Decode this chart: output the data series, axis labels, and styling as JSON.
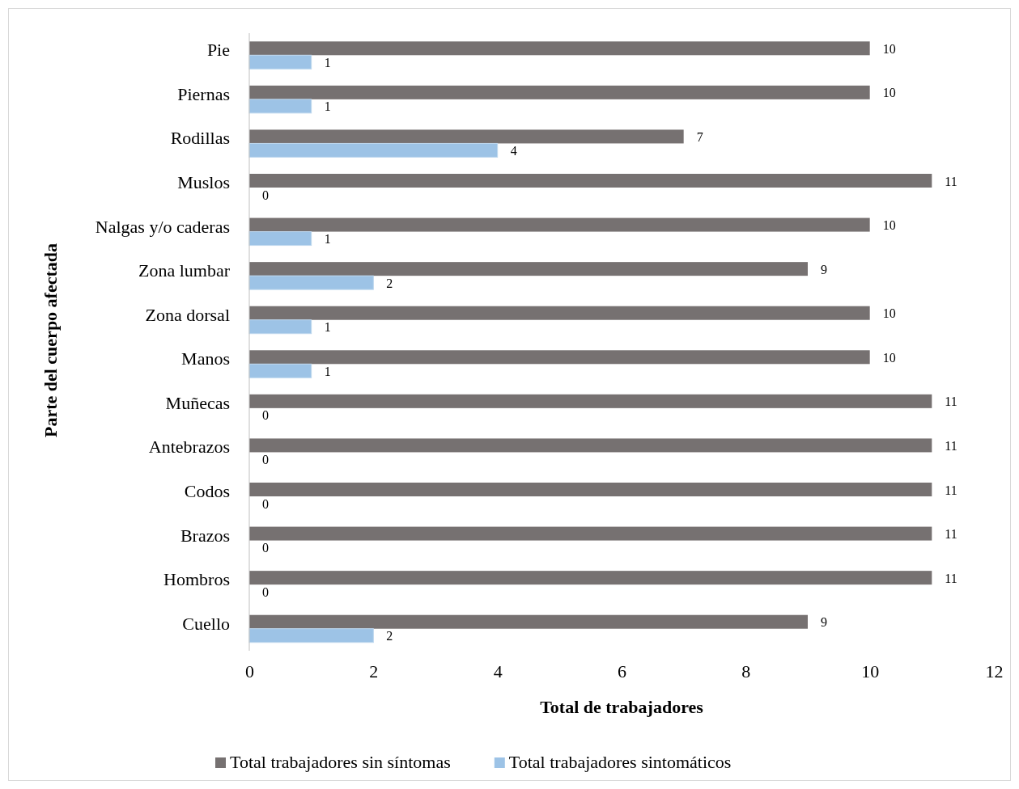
{
  "chart_data": {
    "type": "bar",
    "orientation": "horizontal",
    "xlabel": "Total de trabajadores",
    "ylabel": "Parte del cuerpo afectada",
    "categories": [
      "Pie",
      "Piernas",
      "Rodillas",
      "Muslos",
      "Nalgas y/o caderas",
      "Zona lumbar",
      "Zona dorsal",
      "Manos",
      "Muñecas",
      "Antebrazos",
      "Codos",
      "Brazos",
      "Hombros",
      "Cuello"
    ],
    "series": [
      {
        "name": "Total trabajadores sin síntomas",
        "color": "#767171",
        "values": [
          10,
          10,
          7,
          11,
          10,
          9,
          10,
          10,
          11,
          11,
          11,
          11,
          11,
          9
        ]
      },
      {
        "name": "Total trabajadores sintomáticos",
        "color": "#9dc3e6",
        "values": [
          1,
          1,
          4,
          0,
          1,
          2,
          1,
          1,
          0,
          0,
          0,
          0,
          0,
          2
        ]
      }
    ],
    "xlim": [
      0,
      12
    ],
    "xticks": [
      0,
      2,
      4,
      6,
      8,
      10,
      12
    ],
    "grid": false,
    "legend": "bottom",
    "data_labels": true
  }
}
